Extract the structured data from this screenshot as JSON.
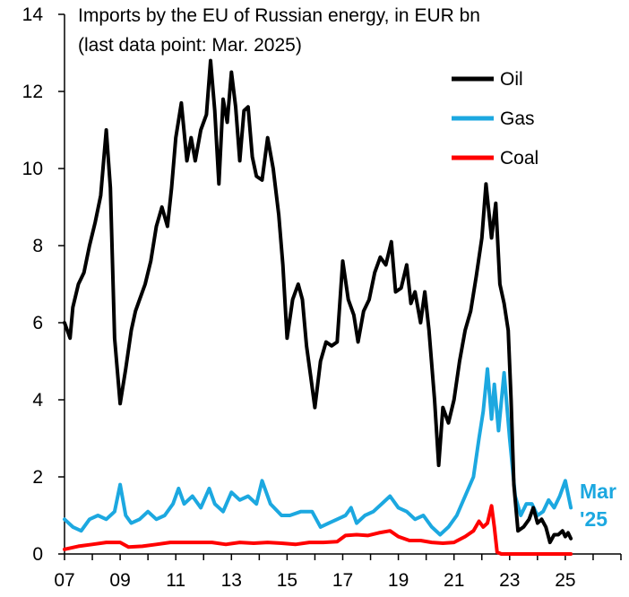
{
  "chart_data": {
    "type": "line",
    "title": "Imports by the EU of Russian energy, in EUR bn",
    "subtitle": "(last data point: Mar. 2025)",
    "xlabel": "",
    "ylabel": "",
    "xlim": [
      2007.0,
      2027.0
    ],
    "ylim": [
      0,
      14
    ],
    "y_ticks": [
      0,
      2,
      4,
      6,
      8,
      10,
      12,
      14
    ],
    "x_ticks": [
      {
        "value": 2007,
        "label": "07"
      },
      {
        "value": 2009,
        "label": "09"
      },
      {
        "value": 2011,
        "label": "11"
      },
      {
        "value": 2013,
        "label": "13"
      },
      {
        "value": 2015,
        "label": "15"
      },
      {
        "value": 2017,
        "label": "17"
      },
      {
        "value": 2019,
        "label": "19"
      },
      {
        "value": 2021,
        "label": "21"
      },
      {
        "value": 2023,
        "label": "23"
      },
      {
        "value": 2025,
        "label": "25"
      }
    ],
    "legend_position": "top-right",
    "annotation": {
      "line1": "Mar",
      "line2": "'25",
      "color": "#1ca8e0"
    },
    "series": [
      {
        "name": "Oil",
        "color": "#000000",
        "points": [
          [
            2007.0,
            6.0
          ],
          [
            2007.2,
            5.6
          ],
          [
            2007.3,
            6.4
          ],
          [
            2007.5,
            7.0
          ],
          [
            2007.7,
            7.3
          ],
          [
            2007.9,
            8.0
          ],
          [
            2008.1,
            8.6
          ],
          [
            2008.3,
            9.3
          ],
          [
            2008.5,
            11.0
          ],
          [
            2008.65,
            9.5
          ],
          [
            2008.8,
            5.6
          ],
          [
            2009.0,
            3.9
          ],
          [
            2009.2,
            4.8
          ],
          [
            2009.4,
            5.8
          ],
          [
            2009.55,
            6.3
          ],
          [
            2009.7,
            6.6
          ],
          [
            2009.9,
            7.0
          ],
          [
            2010.1,
            7.6
          ],
          [
            2010.3,
            8.5
          ],
          [
            2010.5,
            9.0
          ],
          [
            2010.7,
            8.5
          ],
          [
            2010.85,
            9.5
          ],
          [
            2011.0,
            10.8
          ],
          [
            2011.2,
            11.7
          ],
          [
            2011.4,
            10.2
          ],
          [
            2011.55,
            10.8
          ],
          [
            2011.7,
            10.2
          ],
          [
            2011.9,
            11.0
          ],
          [
            2012.1,
            11.4
          ],
          [
            2012.25,
            12.8
          ],
          [
            2012.4,
            11.5
          ],
          [
            2012.55,
            9.6
          ],
          [
            2012.7,
            11.8
          ],
          [
            2012.85,
            11.2
          ],
          [
            2013.0,
            12.5
          ],
          [
            2013.15,
            11.6
          ],
          [
            2013.3,
            10.2
          ],
          [
            2013.45,
            11.5
          ],
          [
            2013.6,
            11.6
          ],
          [
            2013.75,
            10.3
          ],
          [
            2013.9,
            9.8
          ],
          [
            2014.1,
            9.7
          ],
          [
            2014.3,
            10.8
          ],
          [
            2014.5,
            10.0
          ],
          [
            2014.7,
            8.8
          ],
          [
            2014.85,
            7.5
          ],
          [
            2015.0,
            5.6
          ],
          [
            2015.2,
            6.6
          ],
          [
            2015.4,
            7.0
          ],
          [
            2015.55,
            6.6
          ],
          [
            2015.7,
            5.4
          ],
          [
            2015.85,
            4.6
          ],
          [
            2016.0,
            3.8
          ],
          [
            2016.2,
            5.0
          ],
          [
            2016.4,
            5.5
          ],
          [
            2016.6,
            5.4
          ],
          [
            2016.8,
            5.5
          ],
          [
            2017.0,
            7.6
          ],
          [
            2017.2,
            6.6
          ],
          [
            2017.4,
            6.2
          ],
          [
            2017.55,
            5.5
          ],
          [
            2017.75,
            6.3
          ],
          [
            2017.95,
            6.6
          ],
          [
            2018.15,
            7.3
          ],
          [
            2018.35,
            7.7
          ],
          [
            2018.55,
            7.5
          ],
          [
            2018.75,
            8.1
          ],
          [
            2018.9,
            6.8
          ],
          [
            2019.1,
            6.9
          ],
          [
            2019.3,
            7.5
          ],
          [
            2019.45,
            6.5
          ],
          [
            2019.6,
            6.8
          ],
          [
            2019.8,
            6.0
          ],
          [
            2019.95,
            6.8
          ],
          [
            2020.1,
            5.8
          ],
          [
            2020.3,
            4.0
          ],
          [
            2020.45,
            2.3
          ],
          [
            2020.6,
            3.8
          ],
          [
            2020.8,
            3.4
          ],
          [
            2021.0,
            4.0
          ],
          [
            2021.2,
            5.0
          ],
          [
            2021.4,
            5.8
          ],
          [
            2021.6,
            6.3
          ],
          [
            2021.8,
            7.2
          ],
          [
            2022.0,
            8.2
          ],
          [
            2022.15,
            9.6
          ],
          [
            2022.35,
            8.2
          ],
          [
            2022.5,
            9.1
          ],
          [
            2022.65,
            7.0
          ],
          [
            2022.8,
            6.5
          ],
          [
            2022.95,
            5.8
          ],
          [
            2023.05,
            4.0
          ],
          [
            2023.15,
            1.8
          ],
          [
            2023.3,
            0.6
          ],
          [
            2023.5,
            0.7
          ],
          [
            2023.7,
            0.9
          ],
          [
            2023.85,
            1.2
          ],
          [
            2024.0,
            0.8
          ],
          [
            2024.15,
            0.9
          ],
          [
            2024.3,
            0.7
          ],
          [
            2024.45,
            0.3
          ],
          [
            2024.6,
            0.5
          ],
          [
            2024.75,
            0.5
          ],
          [
            2024.9,
            0.6
          ],
          [
            2025.0,
            0.45
          ],
          [
            2025.1,
            0.55
          ],
          [
            2025.2,
            0.4
          ]
        ]
      },
      {
        "name": "Gas",
        "color": "#1ca8e0",
        "points": [
          [
            2007.0,
            0.9
          ],
          [
            2007.3,
            0.7
          ],
          [
            2007.6,
            0.6
          ],
          [
            2007.9,
            0.9
          ],
          [
            2008.2,
            1.0
          ],
          [
            2008.5,
            0.9
          ],
          [
            2008.8,
            1.1
          ],
          [
            2009.0,
            1.8
          ],
          [
            2009.2,
            1.0
          ],
          [
            2009.4,
            0.8
          ],
          [
            2009.7,
            0.9
          ],
          [
            2010.0,
            1.1
          ],
          [
            2010.3,
            0.9
          ],
          [
            2010.6,
            1.0
          ],
          [
            2010.9,
            1.3
          ],
          [
            2011.1,
            1.7
          ],
          [
            2011.3,
            1.3
          ],
          [
            2011.6,
            1.5
          ],
          [
            2011.9,
            1.2
          ],
          [
            2012.2,
            1.7
          ],
          [
            2012.4,
            1.3
          ],
          [
            2012.7,
            1.1
          ],
          [
            2013.0,
            1.6
          ],
          [
            2013.3,
            1.4
          ],
          [
            2013.6,
            1.5
          ],
          [
            2013.9,
            1.3
          ],
          [
            2014.1,
            1.9
          ],
          [
            2014.4,
            1.3
          ],
          [
            2014.8,
            1.0
          ],
          [
            2015.1,
            1.0
          ],
          [
            2015.5,
            1.1
          ],
          [
            2015.9,
            1.1
          ],
          [
            2016.2,
            0.7
          ],
          [
            2016.5,
            0.8
          ],
          [
            2016.8,
            0.9
          ],
          [
            2017.1,
            1.0
          ],
          [
            2017.3,
            1.2
          ],
          [
            2017.5,
            0.8
          ],
          [
            2017.8,
            1.0
          ],
          [
            2018.1,
            1.1
          ],
          [
            2018.4,
            1.3
          ],
          [
            2018.7,
            1.5
          ],
          [
            2019.0,
            1.2
          ],
          [
            2019.3,
            1.1
          ],
          [
            2019.6,
            0.9
          ],
          [
            2019.9,
            1.0
          ],
          [
            2020.2,
            0.7
          ],
          [
            2020.5,
            0.5
          ],
          [
            2020.8,
            0.7
          ],
          [
            2021.1,
            1.0
          ],
          [
            2021.4,
            1.5
          ],
          [
            2021.7,
            2.0
          ],
          [
            2021.9,
            3.0
          ],
          [
            2022.05,
            3.7
          ],
          [
            2022.2,
            4.8
          ],
          [
            2022.35,
            3.5
          ],
          [
            2022.45,
            4.4
          ],
          [
            2022.6,
            3.2
          ],
          [
            2022.8,
            4.7
          ],
          [
            2023.0,
            3.0
          ],
          [
            2023.2,
            1.5
          ],
          [
            2023.4,
            1.0
          ],
          [
            2023.6,
            1.3
          ],
          [
            2023.8,
            1.3
          ],
          [
            2024.0,
            1.0
          ],
          [
            2024.2,
            1.1
          ],
          [
            2024.4,
            1.4
          ],
          [
            2024.6,
            1.2
          ],
          [
            2024.8,
            1.5
          ],
          [
            2025.0,
            1.9
          ],
          [
            2025.2,
            1.2
          ]
        ]
      },
      {
        "name": "Coal",
        "color": "#ff0000",
        "points": [
          [
            2007.0,
            0.12
          ],
          [
            2007.5,
            0.2
          ],
          [
            2008.0,
            0.25
          ],
          [
            2008.5,
            0.3
          ],
          [
            2009.0,
            0.3
          ],
          [
            2009.3,
            0.18
          ],
          [
            2009.8,
            0.2
          ],
          [
            2010.3,
            0.25
          ],
          [
            2010.8,
            0.3
          ],
          [
            2011.3,
            0.3
          ],
          [
            2011.8,
            0.3
          ],
          [
            2012.3,
            0.3
          ],
          [
            2012.8,
            0.25
          ],
          [
            2013.3,
            0.3
          ],
          [
            2013.8,
            0.28
          ],
          [
            2014.3,
            0.3
          ],
          [
            2014.8,
            0.28
          ],
          [
            2015.3,
            0.25
          ],
          [
            2015.8,
            0.3
          ],
          [
            2016.3,
            0.3
          ],
          [
            2016.8,
            0.32
          ],
          [
            2017.1,
            0.48
          ],
          [
            2017.5,
            0.5
          ],
          [
            2017.9,
            0.48
          ],
          [
            2018.3,
            0.55
          ],
          [
            2018.7,
            0.6
          ],
          [
            2019.0,
            0.45
          ],
          [
            2019.4,
            0.35
          ],
          [
            2019.8,
            0.35
          ],
          [
            2020.2,
            0.3
          ],
          [
            2020.6,
            0.28
          ],
          [
            2021.0,
            0.3
          ],
          [
            2021.4,
            0.45
          ],
          [
            2021.7,
            0.6
          ],
          [
            2021.9,
            0.85
          ],
          [
            2022.05,
            0.7
          ],
          [
            2022.2,
            0.8
          ],
          [
            2022.35,
            1.25
          ],
          [
            2022.45,
            0.7
          ],
          [
            2022.55,
            0.05
          ],
          [
            2022.7,
            0.0
          ],
          [
            2023.0,
            0.0
          ],
          [
            2023.5,
            0.0
          ],
          [
            2024.0,
            0.0
          ],
          [
            2024.5,
            0.0
          ],
          [
            2025.0,
            0.0
          ],
          [
            2025.2,
            0.0
          ]
        ]
      }
    ]
  }
}
